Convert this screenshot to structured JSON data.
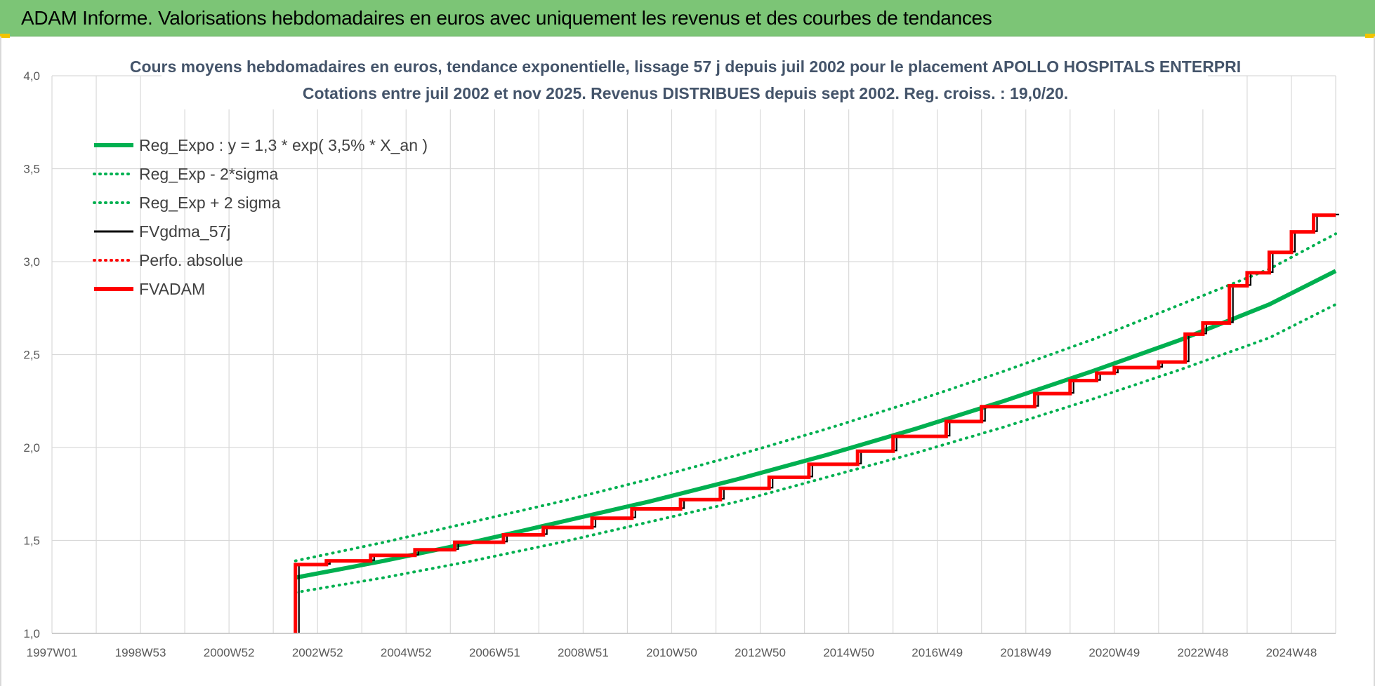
{
  "header": {
    "title": "ADAM Informe. Valorisations hebdomadaires en euros avec uniquement les revenus et des courbes de tendances"
  },
  "colors": {
    "header_bg": "#7cc576",
    "reg_expo": "#00b050",
    "sigma_bands": "#00b050",
    "fvgdma": "#000000",
    "perfo": "#ff0000",
    "fvadam": "#ff0000",
    "grid": "#d9d9d9",
    "title_text": "#44546a"
  },
  "chart_data": {
    "type": "line",
    "title": [
      "Cours moyens hebdomadaires en euros, tendance exponentielle, lissage 57 j depuis juil 2002 pour le placement APOLLO HOSPITALS ENTERPRI",
      "Cotations entre juil 2002 et nov 2025. Revenus DISTRIBUES depuis sept 2002. Reg. croiss. : 19,0/20."
    ],
    "x_start": 1997.0,
    "x_end": 2026.0,
    "x_ticks": [
      {
        "label": "1997W01",
        "x": 1997.0
      },
      {
        "label": "1998W53",
        "x": 1999.0
      },
      {
        "label": "2000W52",
        "x": 2001.0
      },
      {
        "label": "2002W52",
        "x": 2003.0
      },
      {
        "label": "2004W52",
        "x": 2005.0
      },
      {
        "label": "2006W51",
        "x": 2007.0
      },
      {
        "label": "2008W51",
        "x": 2009.0
      },
      {
        "label": "2010W50",
        "x": 2011.0
      },
      {
        "label": "2012W50",
        "x": 2013.0
      },
      {
        "label": "2014W50",
        "x": 2015.0
      },
      {
        "label": "2016W49",
        "x": 2017.0
      },
      {
        "label": "2018W49",
        "x": 2019.0
      },
      {
        "label": "2020W49",
        "x": 2021.0
      },
      {
        "label": "2022W48",
        "x": 2023.0
      },
      {
        "label": "2024W48",
        "x": 2025.0
      }
    ],
    "ylim": [
      1.0,
      4.0
    ],
    "y_ticks": [
      {
        "label": "1,0",
        "v": 1.0
      },
      {
        "label": "1,5",
        "v": 1.5
      },
      {
        "label": "2,0",
        "v": 2.0
      },
      {
        "label": "2,5",
        "v": 2.5
      },
      {
        "label": "3,0",
        "v": 3.0
      },
      {
        "label": "3,5",
        "v": 3.5
      },
      {
        "label": "4,0",
        "v": 4.0
      }
    ],
    "grid": true,
    "legend_position": "top-left",
    "legend": [
      {
        "label": "Reg_Expo : y = 1,3 * exp( 3,5% *  X_an )",
        "style": "solid-thick",
        "color": "#00b050"
      },
      {
        "label": "Reg_Exp - 2*sigma",
        "style": "dotted",
        "color": "#00b050"
      },
      {
        "label": "Reg_Exp + 2 sigma",
        "style": "dotted",
        "color": "#00b050"
      },
      {
        "label": "FVgdma_57j",
        "style": "solid",
        "color": "#000000"
      },
      {
        "label": "Perfo. absolue",
        "style": "dotted",
        "color": "#ff0000"
      },
      {
        "label": "FVADAM",
        "style": "solid-thick",
        "color": "#ff0000"
      }
    ],
    "reg_expo": {
      "name": "Reg_Expo : y = 1,3 * exp( 3,5% *  X_an )",
      "x": [
        2002.5,
        2004.5,
        2006.5,
        2008.5,
        2010.5,
        2012.5,
        2014.5,
        2016.5,
        2018.5,
        2020.5,
        2022.5,
        2024.5,
        2026.0
      ],
      "y": [
        1.3,
        1.39,
        1.49,
        1.6,
        1.71,
        1.83,
        1.96,
        2.1,
        2.25,
        2.41,
        2.58,
        2.77,
        2.95
      ]
    },
    "reg_minus_2sigma": {
      "name": "Reg_Exp - 2*sigma",
      "x": [
        2002.5,
        2004.5,
        2006.5,
        2008.5,
        2010.5,
        2012.5,
        2014.5,
        2016.5,
        2018.5,
        2020.5,
        2022.5,
        2024.5,
        2026.0
      ],
      "y": [
        1.22,
        1.3,
        1.39,
        1.49,
        1.6,
        1.71,
        1.84,
        1.97,
        2.11,
        2.26,
        2.42,
        2.59,
        2.77
      ]
    },
    "reg_plus_2sigma": {
      "name": "Reg_Exp + 2 sigma",
      "x": [
        2002.5,
        2004.5,
        2006.5,
        2008.5,
        2010.5,
        2012.5,
        2014.5,
        2016.5,
        2018.5,
        2020.5,
        2022.5,
        2024.5,
        2026.0
      ],
      "y": [
        1.39,
        1.49,
        1.6,
        1.71,
        1.83,
        1.96,
        2.1,
        2.25,
        2.41,
        2.58,
        2.77,
        2.96,
        3.15
      ]
    },
    "fvadam_steps": {
      "name": "FVADAM",
      "start_x": 2002.5,
      "start_from": 1.0,
      "x": [
        2002.5,
        2003.2,
        2004.2,
        2005.2,
        2006.1,
        2007.2,
        2008.1,
        2009.2,
        2010.1,
        2011.2,
        2012.1,
        2013.2,
        2014.1,
        2015.2,
        2016.0,
        2017.2,
        2018.0,
        2019.2,
        2020.0,
        2020.6,
        2021.0,
        2022.0,
        2022.6,
        2023.0,
        2023.6,
        2024.0,
        2024.5,
        2025.0,
        2025.5,
        2026.0
      ],
      "y": [
        1.37,
        1.39,
        1.42,
        1.45,
        1.49,
        1.53,
        1.57,
        1.62,
        1.67,
        1.72,
        1.78,
        1.84,
        1.91,
        1.98,
        2.06,
        2.14,
        2.22,
        2.29,
        2.36,
        2.4,
        2.43,
        2.46,
        2.61,
        2.67,
        2.87,
        2.94,
        3.05,
        3.16,
        3.25,
        3.25
      ]
    }
  }
}
